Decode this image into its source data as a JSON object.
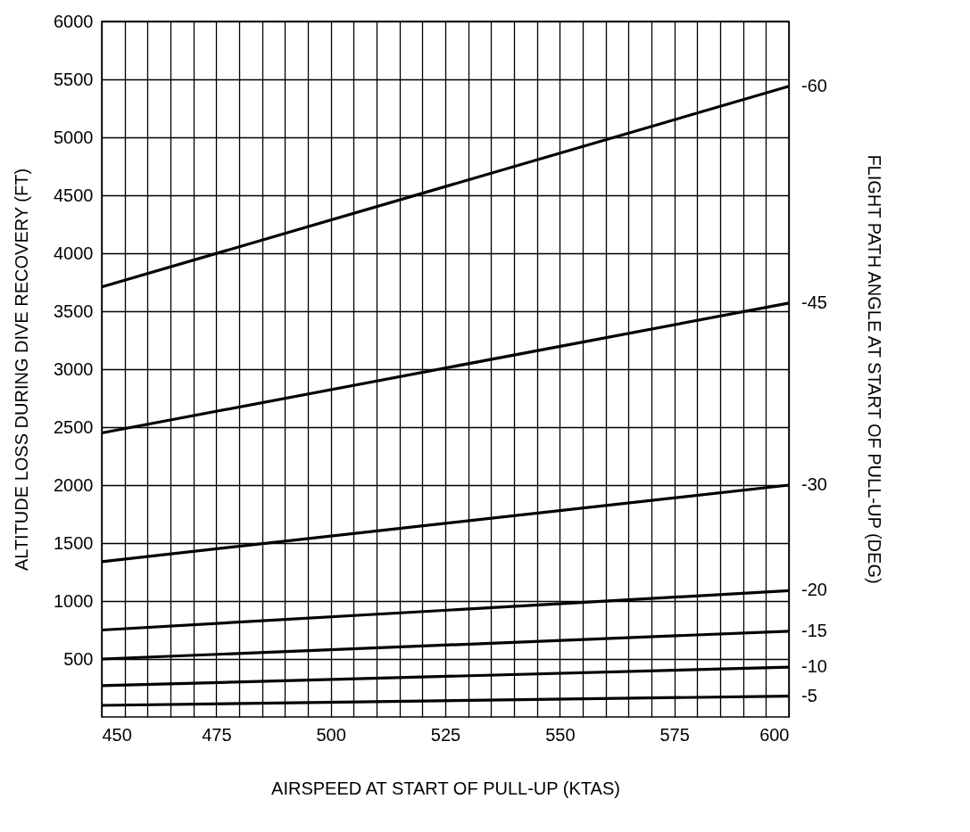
{
  "chart_data": {
    "type": "line",
    "xlabel": "AIRSPEED AT START OF PULL-UP (KTAS)",
    "ylabel": "ALTITUDE LOSS DURING DIVE RECOVERY (FT)",
    "y2label": "FLIGHT PATH ANGLE AT START OF PULL-UP (DEG)",
    "x": [
      450,
      600
    ],
    "series": [
      {
        "name": "-60",
        "color": "#000000",
        "values": [
          3710,
          5440
        ]
      },
      {
        "name": "-45",
        "color": "#000000",
        "values": [
          2450,
          3570
        ]
      },
      {
        "name": "-30",
        "color": "#000000",
        "values": [
          1340,
          2000
        ]
      },
      {
        "name": "-20",
        "color": "#000000",
        "values": [
          750,
          1090
        ]
      },
      {
        "name": "-15",
        "color": "#000000",
        "values": [
          500,
          740
        ]
      },
      {
        "name": "-10",
        "color": "#000000",
        "values": [
          270,
          430
        ]
      },
      {
        "name": "-5",
        "color": "#000000",
        "values": [
          100,
          180
        ]
      }
    ],
    "xlim": [
      450,
      600
    ],
    "ylim": [
      0,
      6000
    ],
    "xticks": [
      450,
      {
        "value": 455,
        "label": null
      },
      {
        "value": 460,
        "label": null
      },
      {
        "value": 465,
        "label": null
      },
      {
        "value": 470,
        "label": null
      },
      475,
      {
        "value": 480,
        "label": null
      },
      {
        "value": 485,
        "label": null
      },
      {
        "value": 490,
        "label": null
      },
      {
        "value": 495,
        "label": null
      },
      500,
      {
        "value": 505,
        "label": null
      },
      {
        "value": 510,
        "label": null
      },
      {
        "value": 515,
        "label": null
      },
      {
        "value": 520,
        "label": null
      },
      525,
      {
        "value": 530,
        "label": null
      },
      {
        "value": 535,
        "label": null
      },
      {
        "value": 540,
        "label": null
      },
      {
        "value": 545,
        "label": null
      },
      550,
      {
        "value": 555,
        "label": null
      },
      {
        "value": 560,
        "label": null
      },
      {
        "value": 565,
        "label": null
      },
      {
        "value": 570,
        "label": null
      },
      575,
      {
        "value": 580,
        "label": null
      },
      {
        "value": 585,
        "label": null
      },
      {
        "value": 590,
        "label": null
      },
      {
        "value": 595,
        "label": null
      },
      600
    ],
    "yticks": [
      500,
      1000,
      1500,
      2000,
      2500,
      3000,
      3500,
      4000,
      4500,
      5000,
      5500,
      6000
    ],
    "grid": true,
    "legend": false,
    "marker": "none",
    "line_style": "solid"
  }
}
